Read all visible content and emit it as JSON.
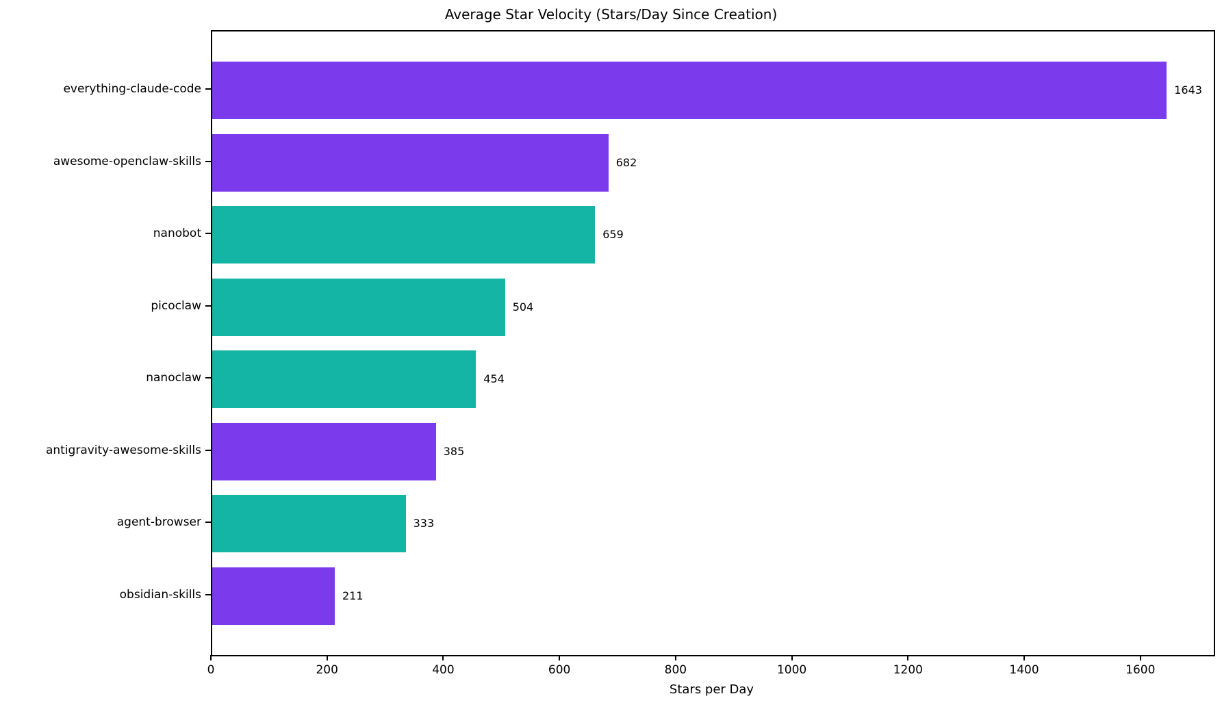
{
  "chart_data": {
    "type": "bar",
    "orientation": "horizontal",
    "title": "Average Star Velocity (Stars/Day Since Creation)",
    "xlabel": "Stars per Day",
    "categories": [
      "everything-claude-code",
      "awesome-openclaw-skills",
      "nanobot",
      "picoclaw",
      "nanoclaw",
      "antigravity-awesome-skills",
      "agent-browser",
      "obsidian-skills"
    ],
    "values": [
      1643,
      682,
      659,
      504,
      454,
      385,
      333,
      211
    ],
    "value_labels": [
      "1643",
      "682",
      "659",
      "504",
      "454",
      "385",
      "333",
      "211"
    ],
    "bar_colors": [
      "#7C3AED",
      "#7C3AED",
      "#15B5A5",
      "#15B5A5",
      "#15B5A5",
      "#7C3AED",
      "#15B5A5",
      "#7C3AED"
    ],
    "xticks": [
      0,
      200,
      400,
      600,
      800,
      1000,
      1200,
      1400,
      1600
    ],
    "xlim": [
      0,
      1724
    ],
    "grid": false,
    "legend_position": "none",
    "colors": {
      "purple": "#7C3AED",
      "teal": "#15B5A5",
      "axis": "#000000",
      "background": "#ffffff",
      "text": "#000000"
    }
  }
}
